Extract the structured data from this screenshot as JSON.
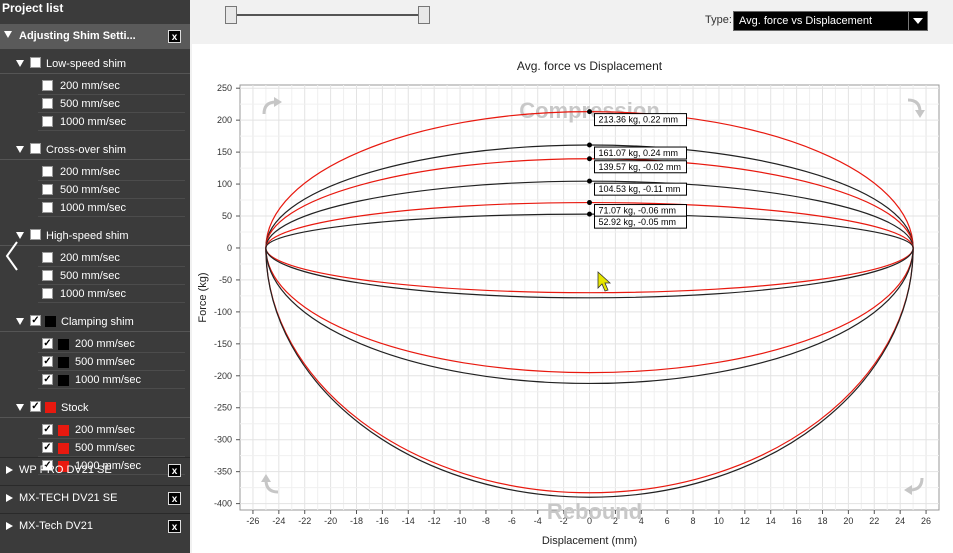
{
  "sidebar": {
    "title": "Project list",
    "active_project": {
      "label": "Adjusting Shim Setti...",
      "close_label": "x",
      "groups": [
        {
          "label": "Low-speed shim",
          "checked": false,
          "color": null,
          "items": [
            {
              "label": "200 mm/sec",
              "checked": false,
              "color": null
            },
            {
              "label": "500 mm/sec",
              "checked": false,
              "color": null
            },
            {
              "label": "1000 mm/sec",
              "checked": false,
              "color": null
            }
          ]
        },
        {
          "label": "Cross-over shim",
          "checked": false,
          "color": null,
          "items": [
            {
              "label": "200 mm/sec",
              "checked": false,
              "color": null
            },
            {
              "label": "500 mm/sec",
              "checked": false,
              "color": null
            },
            {
              "label": "1000 mm/sec",
              "checked": false,
              "color": null
            }
          ]
        },
        {
          "label": "High-speed shim",
          "checked": false,
          "color": null,
          "items": [
            {
              "label": "200 mm/sec",
              "checked": false,
              "color": null
            },
            {
              "label": "500 mm/sec",
              "checked": false,
              "color": null
            },
            {
              "label": "1000 mm/sec",
              "checked": false,
              "color": null
            }
          ]
        },
        {
          "label": "Clamping shim",
          "checked": true,
          "color": "#000000",
          "items": [
            {
              "label": "200 mm/sec",
              "checked": true,
              "color": "#000000"
            },
            {
              "label": "500 mm/sec",
              "checked": true,
              "color": "#000000"
            },
            {
              "label": "1000 mm/sec",
              "checked": true,
              "color": "#000000"
            }
          ]
        },
        {
          "label": "Stock",
          "checked": true,
          "color": "#e8190f",
          "items": [
            {
              "label": "200 mm/sec",
              "checked": true,
              "color": "#e8190f"
            },
            {
              "label": "500 mm/sec",
              "checked": true,
              "color": "#e8190f"
            },
            {
              "label": "1000 mm/sec",
              "checked": true,
              "color": "#e8190f"
            }
          ]
        }
      ]
    },
    "other_projects": [
      {
        "label": "WP PRO DV21 SE",
        "close_label": "x"
      },
      {
        "label": "MX-TECH DV21 SE",
        "close_label": "x"
      },
      {
        "label": "MX-Tech DV21",
        "close_label": "x"
      }
    ]
  },
  "toolbar": {
    "type_label": "Type:",
    "type_value": "Avg. force vs Displacement"
  },
  "chart_data": {
    "type": "line",
    "title": "Avg. force vs Displacement",
    "xlabel": "Displacement (mm)",
    "ylabel": "Force (kg)",
    "xlim": [
      -27,
      27
    ],
    "ylim": [
      -410,
      255
    ],
    "xticks": [
      -26,
      -24,
      -22,
      -20,
      -18,
      -16,
      -14,
      -12,
      -10,
      -8,
      -6,
      -4,
      -2,
      0,
      2,
      4,
      6,
      8,
      10,
      12,
      14,
      16,
      18,
      20,
      22,
      24,
      26
    ],
    "yticks": [
      250,
      200,
      150,
      100,
      50,
      0,
      -50,
      -100,
      -150,
      -200,
      -250,
      -300,
      -350,
      -400
    ],
    "grid": true,
    "region_labels": {
      "top": "Compression",
      "bottom": "Rebound"
    },
    "series": [
      {
        "color": "#e8190f",
        "points": [
          [
            -25,
            0
          ],
          [
            0,
            213.36
          ],
          [
            25,
            0
          ],
          [
            0,
            -383
          ],
          [
            -25,
            0
          ]
        ]
      },
      {
        "color": "#222222",
        "points": [
          [
            -25,
            0
          ],
          [
            0,
            161.07
          ],
          [
            25,
            0
          ],
          [
            0,
            -390
          ],
          [
            -25,
            0
          ]
        ]
      },
      {
        "color": "#e8190f",
        "points": [
          [
            -25,
            0
          ],
          [
            0,
            139.57
          ],
          [
            25,
            0
          ],
          [
            0,
            -195
          ],
          [
            -25,
            0
          ]
        ]
      },
      {
        "color": "#222222",
        "points": [
          [
            -25,
            0
          ],
          [
            0,
            104.53
          ],
          [
            25,
            0
          ],
          [
            0,
            -212
          ],
          [
            -25,
            0
          ]
        ]
      },
      {
        "color": "#e8190f",
        "points": [
          [
            -25,
            0
          ],
          [
            0,
            71.07
          ],
          [
            25,
            0
          ],
          [
            0,
            -70
          ],
          [
            -25,
            0
          ]
        ]
      },
      {
        "color": "#222222",
        "points": [
          [
            -25,
            0
          ],
          [
            0,
            52.92
          ],
          [
            25,
            0
          ],
          [
            0,
            -78
          ],
          [
            -25,
            0
          ]
        ]
      }
    ],
    "annotations": [
      {
        "text": "213.36 kg, 0.22 mm",
        "x": 0,
        "y": 213.36
      },
      {
        "text": "161.07 kg, 0.24 mm",
        "x": 0,
        "y": 161.07
      },
      {
        "text": "139.57 kg, -0.02 mm",
        "x": 0,
        "y": 139.57
      },
      {
        "text": "104.53 kg, -0.11 mm",
        "x": 0,
        "y": 104.53
      },
      {
        "text": "71.07 kg, -0.06 mm",
        "x": 0,
        "y": 71.07
      },
      {
        "text": "52.92 kg, -0.05 mm",
        "x": 0,
        "y": 52.92
      }
    ]
  }
}
